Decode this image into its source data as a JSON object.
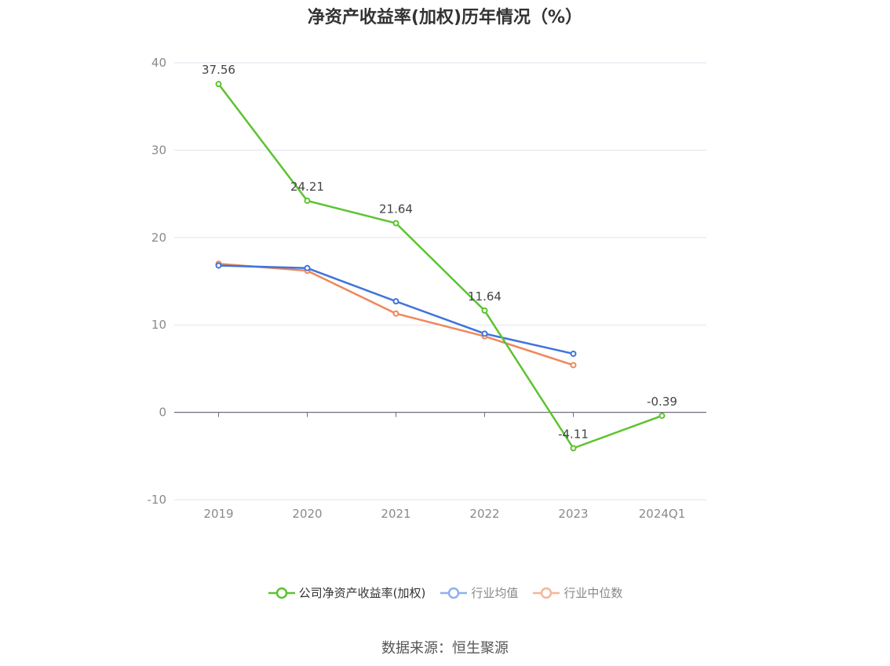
{
  "chart_data": {
    "type": "line",
    "title": "净资产收益率(加权)历年情况（%）",
    "categories": [
      "2019",
      "2020",
      "2021",
      "2022",
      "2023",
      "2024Q1"
    ],
    "ylim": [
      -10,
      40
    ],
    "yticks": [
      -10,
      0,
      10,
      20,
      30,
      40
    ],
    "grid": true,
    "legend_position": "bottom",
    "series": [
      {
        "name": "公司净资产收益率(加权)",
        "color": "#5cc330",
        "values": [
          37.56,
          24.21,
          21.64,
          11.64,
          -4.11,
          -0.39
        ],
        "labels": [
          "37.56",
          "24.21",
          "21.64",
          "11.64",
          "-4.11",
          "-0.39"
        ]
      },
      {
        "name": "行业均值",
        "color": "#3e74db",
        "values": [
          16.8,
          16.5,
          12.7,
          9.0,
          6.7,
          null
        ]
      },
      {
        "name": "行业中位数",
        "color": "#f0875a",
        "values": [
          17.0,
          16.2,
          11.3,
          8.7,
          5.4,
          null
        ]
      }
    ],
    "legend_colors": [
      "#5cc330",
      "#8fb0ee",
      "#f6b59a"
    ]
  },
  "source": "数据来源：恒生聚源"
}
